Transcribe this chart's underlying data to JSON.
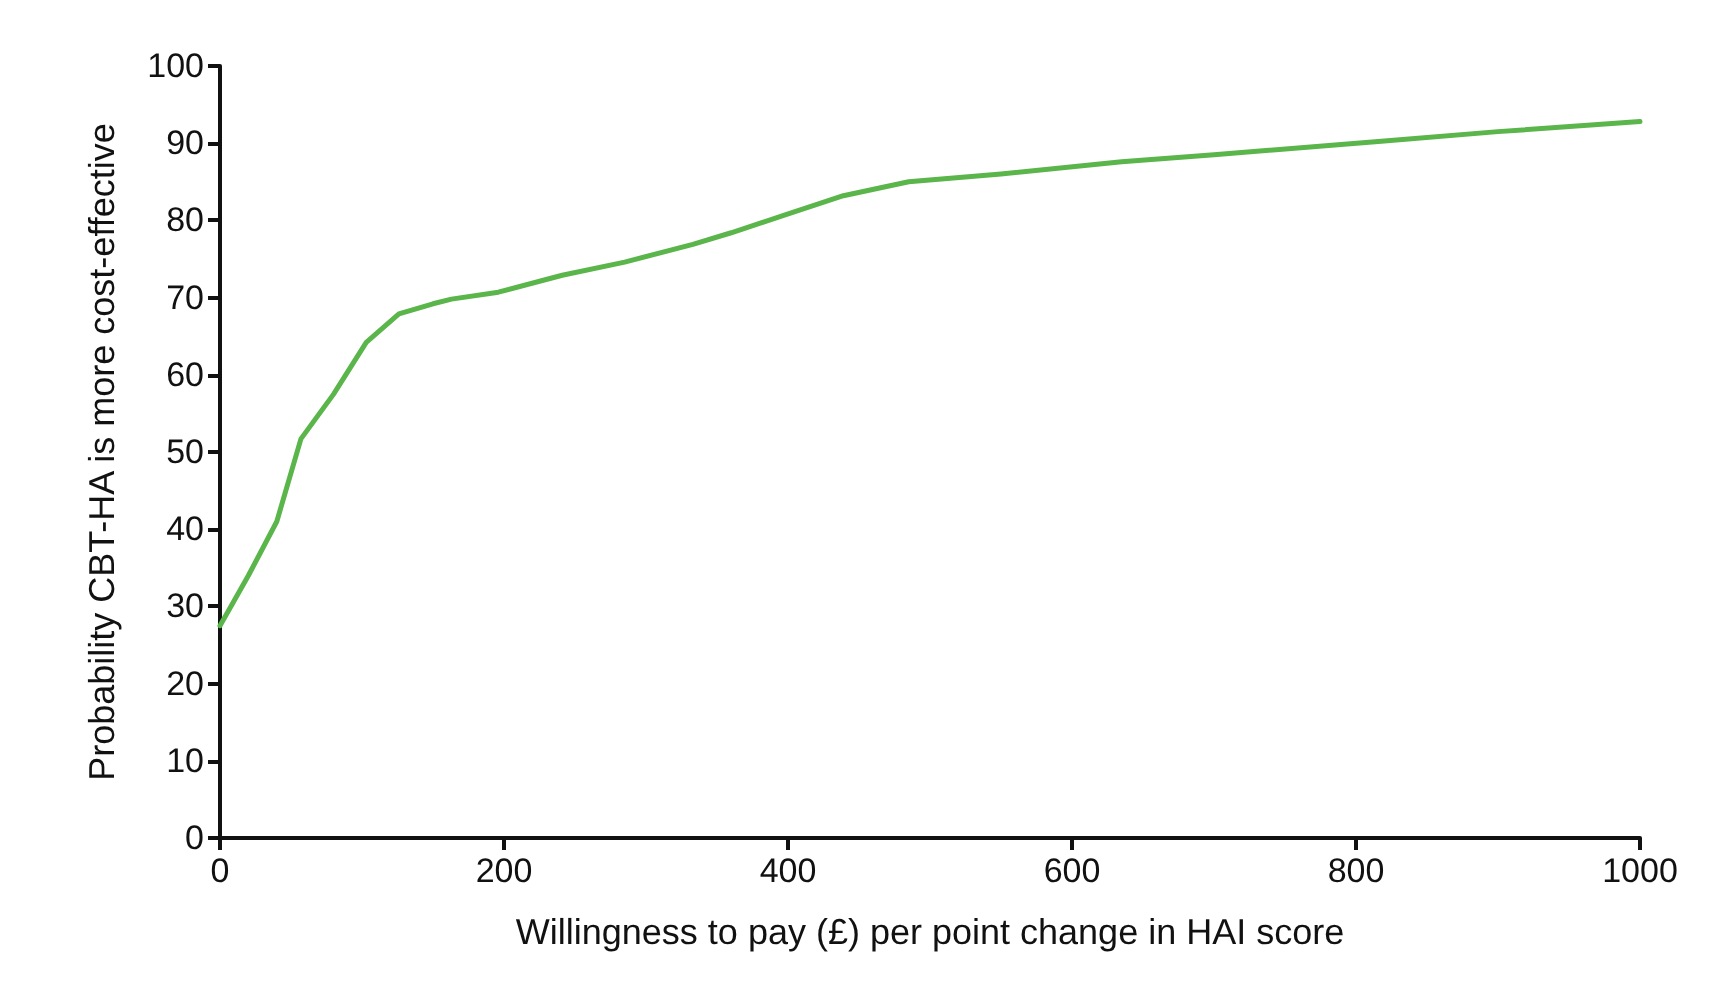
{
  "chart_data": {
    "type": "line",
    "xlabel": "Willingness to pay (£) per point change in HAI score",
    "ylabel": "Probability CBT-HA is more cost-effective",
    "x": [
      0,
      20,
      40,
      57,
      80,
      103,
      126,
      150,
      163,
      196,
      241,
      285,
      333,
      360,
      398,
      439,
      485,
      550,
      635,
      700,
      820,
      900,
      1000
    ],
    "series": [
      {
        "color": "#5ab54a",
        "values": [
          27.5,
          34,
          41,
          51.7,
          57.5,
          64.2,
          67.9,
          69.2,
          69.8,
          70.7,
          72.9,
          74.6,
          76.9,
          78.4,
          80.7,
          83.2,
          85,
          86,
          87.6,
          88.5,
          90.3,
          91.5,
          92.8
        ]
      }
    ],
    "xlim": [
      0,
      1000
    ],
    "xticks": [
      0,
      200,
      400,
      600,
      800,
      1000
    ],
    "ylim": [
      0,
      100
    ],
    "yticks": [
      0,
      10,
      20,
      30,
      40,
      50,
      60,
      70,
      80,
      90,
      100
    ],
    "grid": false,
    "marker": "none",
    "line_style": "solid"
  }
}
